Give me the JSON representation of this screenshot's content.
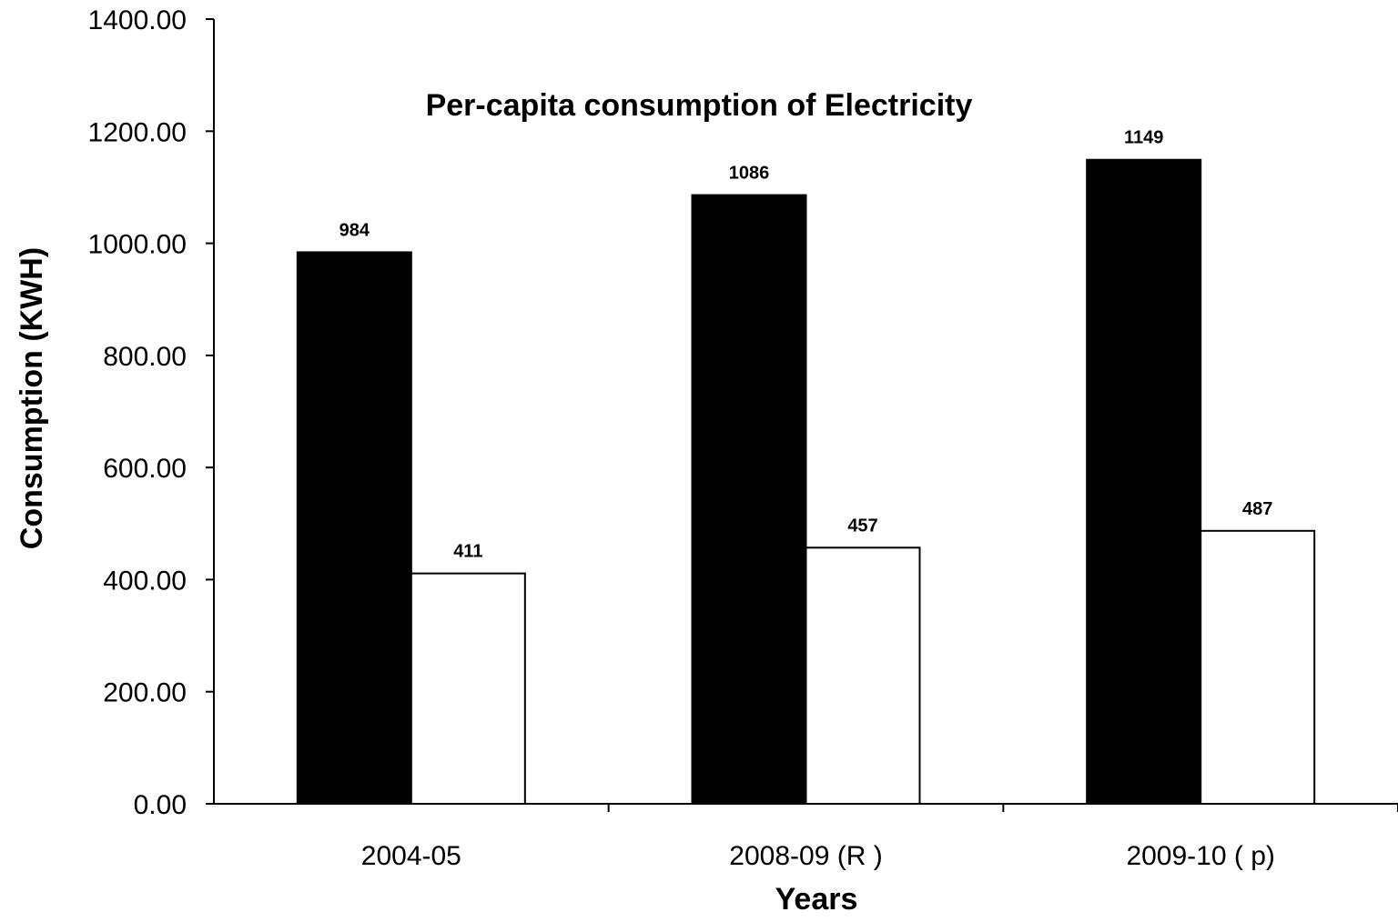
{
  "chart_data": {
    "type": "bar",
    "title": "Per-capita consumption of Electricity",
    "xlabel": "Years",
    "ylabel": "Consumption (KWH)",
    "categories": [
      "2004-05",
      "2008-09 (R )",
      "2009-10 ( p)"
    ],
    "series": [
      {
        "values": [
          984,
          1086,
          1149
        ],
        "color": "#000000"
      },
      {
        "values": [
          411,
          457,
          487
        ],
        "color": "#ffffff"
      }
    ],
    "data_labels": [
      [
        "984",
        "1086",
        "1149"
      ],
      [
        "411",
        "457",
        "487"
      ]
    ],
    "ylim": [
      0,
      1400
    ],
    "yticks": [
      "0.00",
      "200.00",
      "400.00",
      "600.00",
      "800.00",
      "1000.00",
      "1200.00",
      "1400.00"
    ],
    "grid": false,
    "legend": "none"
  }
}
